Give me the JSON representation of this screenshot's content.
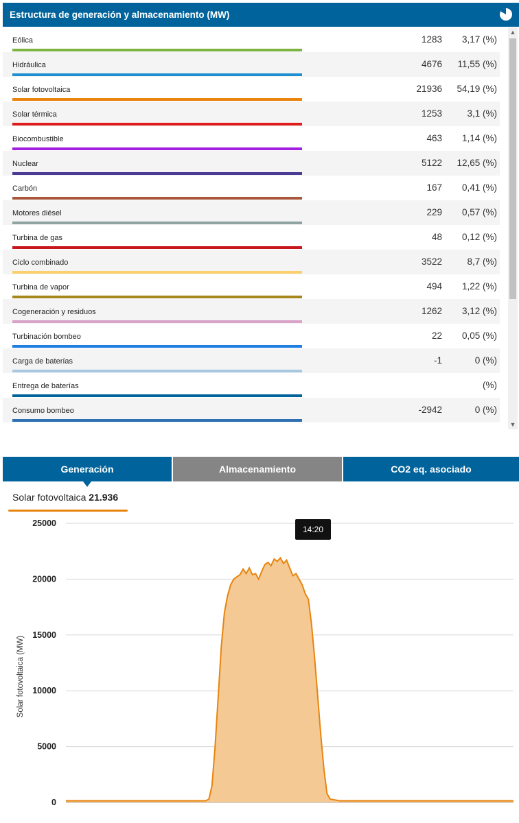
{
  "header": {
    "title": "Estructura de generación y almacenamiento (MW)",
    "icon": "pie-chart-icon"
  },
  "rows": [
    {
      "label": "Eólica",
      "value": "1283",
      "pct": "3,17 (%)",
      "color": "#7cb342"
    },
    {
      "label": "Hidráulica",
      "value": "4676",
      "pct": "11,55 (%)",
      "color": "#1e90d2"
    },
    {
      "label": "Solar fotovoltaica",
      "value": "21936",
      "pct": "54,19 (%)",
      "color": "#e8840f"
    },
    {
      "label": "Solar térmica",
      "value": "1253",
      "pct": "3,1 (%)",
      "color": "#e01b1b"
    },
    {
      "label": "Biocombustible",
      "value": "463",
      "pct": "1,14 (%)",
      "color": "#a31fe0"
    },
    {
      "label": "Nuclear",
      "value": "5122",
      "pct": "12,65 (%)",
      "color": "#4b3b94"
    },
    {
      "label": "Carbón",
      "value": "167",
      "pct": "0,41 (%)",
      "color": "#a9573a"
    },
    {
      "label": "Motores diésel",
      "value": "229",
      "pct": "0,57 (%)",
      "color": "#8fa3a0"
    },
    {
      "label": "Turbina de gas",
      "value": "48",
      "pct": "0,12 (%)",
      "color": "#c8181e"
    },
    {
      "label": "Ciclo combinado",
      "value": "3522",
      "pct": "8,7 (%)",
      "color": "#fdcf6b"
    },
    {
      "label": "Turbina de vapor",
      "value": "494",
      "pct": "1,22 (%)",
      "color": "#a5871c"
    },
    {
      "label": "Cogeneración y residuos",
      "value": "1262",
      "pct": "3,12 (%)",
      "color": "#d9a2c8"
    },
    {
      "label": "Turbinación bombeo",
      "value": "22",
      "pct": "0,05 (%)",
      "color": "#1e7fe0"
    },
    {
      "label": "Carga de baterías",
      "value": "-1",
      "pct": "0 (%)",
      "color": "#a6c8e0"
    },
    {
      "label": "Entrega de baterías",
      "value": "",
      "pct": "(%)",
      "color": "#00639b"
    },
    {
      "label": "Consumo bombeo",
      "value": "-2942",
      "pct": "0 (%)",
      "color": "#2f6fb4"
    }
  ],
  "tabs": {
    "generacion": "Generación",
    "almacenamiento": "Almacenamiento",
    "co2": "CO2 eq. asociado"
  },
  "series_label": {
    "name": "Solar fotovoltaica",
    "value": "21.936"
  },
  "tooltip": "14:20",
  "chart_data": {
    "type": "area",
    "title": "",
    "ylabel": "Solar fotovoltaica (MW)",
    "xlabel": "",
    "ylim": [
      0,
      25000
    ],
    "yticks": [
      0,
      5000,
      10000,
      15000,
      20000,
      25000
    ],
    "grid": true,
    "color": "#e8840f",
    "fill": "#f5c993",
    "series": [
      {
        "values": [
          150,
          150,
          150,
          150,
          150,
          150,
          150,
          150,
          150,
          150,
          150,
          150,
          150,
          150,
          150,
          150,
          150,
          150,
          150,
          150,
          150,
          150,
          150,
          150,
          150,
          150,
          150,
          150,
          150,
          150,
          150,
          150,
          150,
          150,
          150,
          150,
          150,
          150,
          150,
          150,
          150,
          150,
          150,
          150,
          150,
          150,
          300,
          1500,
          5000,
          9500,
          14000,
          17000,
          18500,
          19500,
          20000,
          20200,
          20400,
          20900,
          20500,
          21000,
          20400,
          20500,
          20000,
          20700,
          21300,
          21500,
          21200,
          21800,
          21600,
          21900,
          21400,
          21700,
          21000,
          20300,
          20500,
          20000,
          19500,
          18700,
          18200,
          16000,
          13000,
          9500,
          6000,
          3000,
          800,
          300,
          250,
          200,
          150,
          150,
          150,
          150,
          150,
          150,
          150,
          150,
          150,
          150,
          150,
          150,
          150,
          150,
          150,
          150,
          150,
          150,
          150,
          150,
          150,
          150,
          150,
          150,
          150,
          150,
          150,
          150,
          150,
          150,
          150,
          150,
          150,
          150,
          150,
          150,
          150,
          150,
          150,
          150,
          150,
          150,
          150,
          150,
          150,
          150,
          150,
          150,
          150,
          150,
          150,
          150,
          150,
          150,
          150,
          150,
          150
        ]
      }
    ]
  }
}
